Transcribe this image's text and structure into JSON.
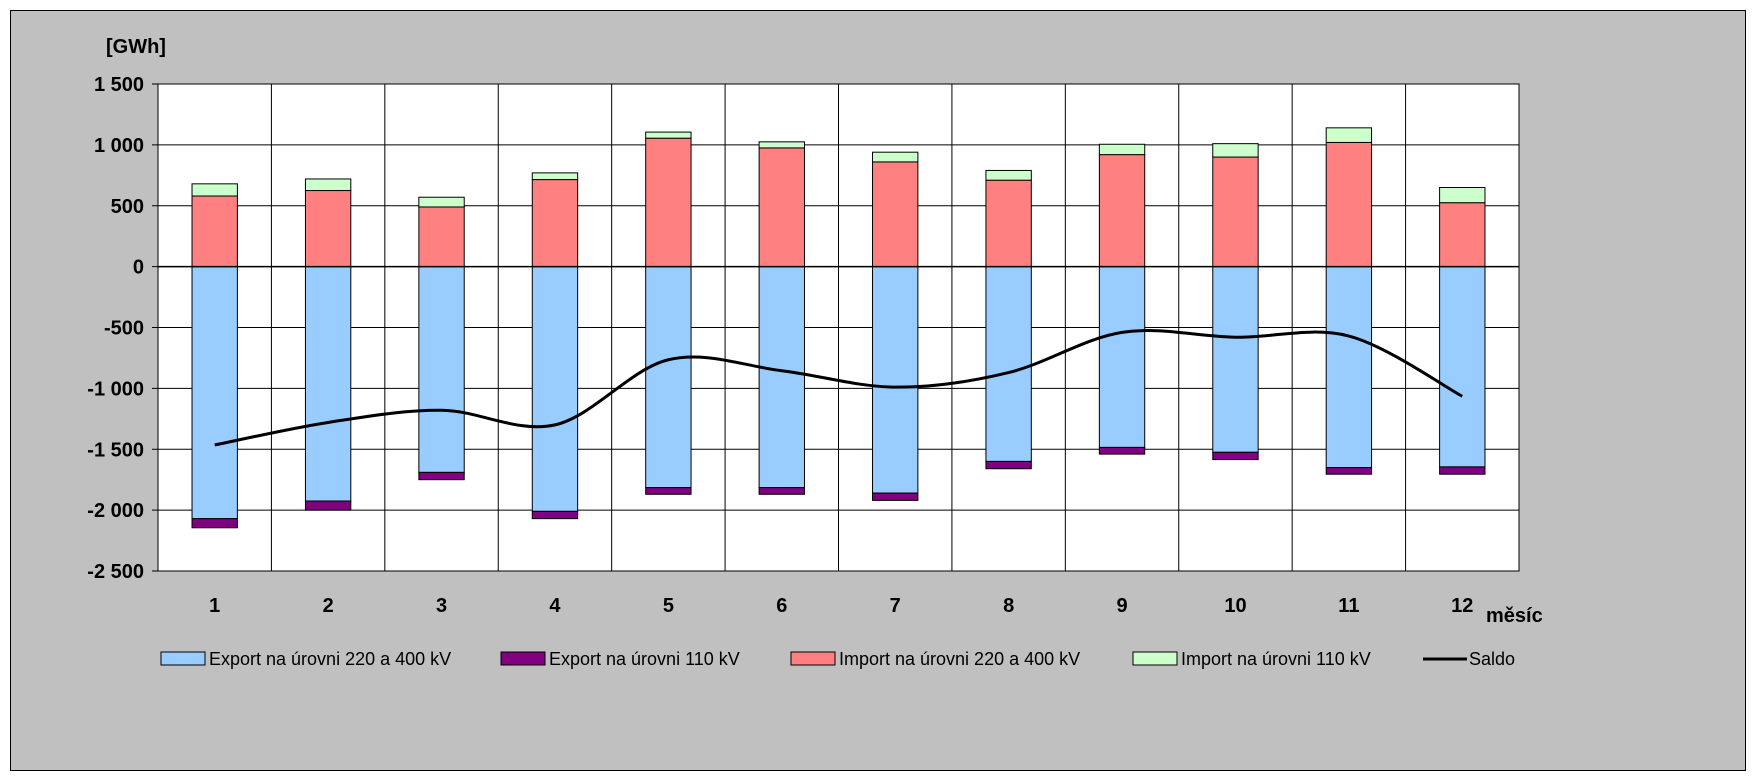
{
  "chart_data": {
    "type": "bar",
    "stacked": true,
    "ylabel": "[GWh]",
    "xlabel": "měsíc",
    "ylim": [
      -2500,
      1500
    ],
    "yticks": [
      1500,
      1000,
      500,
      0,
      -500,
      -1000,
      -1500,
      -2000,
      -2500
    ],
    "ytick_labels": [
      "1 500",
      "1 000",
      "500",
      "0",
      "-500",
      "-1 000",
      "-1 500",
      "-2 000",
      "-2 500"
    ],
    "grid": true,
    "legend_position": "bottom",
    "categories": [
      "1",
      "2",
      "3",
      "4",
      "5",
      "6",
      "7",
      "8",
      "9",
      "10",
      "11",
      "12"
    ],
    "series": [
      {
        "name": "Export na úrovni 220 a 400 kV",
        "kind": "bar",
        "color": "#99ccff",
        "values": [
          -2070,
          -1925,
          -1690,
          -2010,
          -1815,
          -1815,
          -1860,
          -1600,
          -1485,
          -1525,
          -1650,
          -1645
        ]
      },
      {
        "name": "Export na úrovni 110 kV",
        "kind": "bar",
        "color": "#800080",
        "values": [
          -75,
          -75,
          -60,
          -60,
          -55,
          -55,
          -60,
          -60,
          -55,
          -60,
          -55,
          -60
        ]
      },
      {
        "name": "Import na úrovni 220 a 400 kV",
        "kind": "bar",
        "color": "#ff8080",
        "values": [
          580,
          625,
          490,
          715,
          1055,
          975,
          860,
          710,
          920,
          900,
          1020,
          525
        ]
      },
      {
        "name": "Import na úrovni 110 kV",
        "kind": "bar",
        "color": "#ccffcc",
        "values": [
          100,
          95,
          80,
          55,
          50,
          50,
          80,
          80,
          85,
          110,
          120,
          125
        ]
      },
      {
        "name": "Saldo",
        "kind": "line",
        "color": "#000000",
        "values": [
          -1465,
          -1280,
          -1180,
          -1300,
          -765,
          -855,
          -990,
          -870,
          -540,
          -580,
          -570,
          -1065
        ]
      }
    ]
  }
}
